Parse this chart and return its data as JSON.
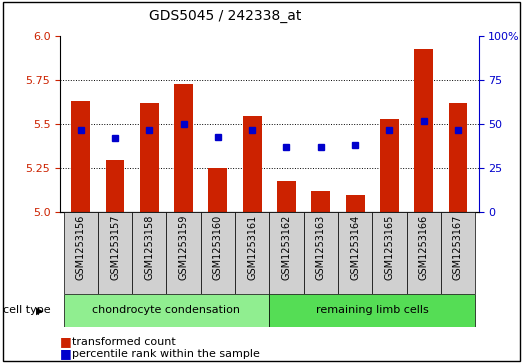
{
  "title": "GDS5045 / 242338_at",
  "samples": [
    "GSM1253156",
    "GSM1253157",
    "GSM1253158",
    "GSM1253159",
    "GSM1253160",
    "GSM1253161",
    "GSM1253162",
    "GSM1253163",
    "GSM1253164",
    "GSM1253165",
    "GSM1253166",
    "GSM1253167"
  ],
  "transformed_count": [
    5.63,
    5.3,
    5.62,
    5.73,
    5.25,
    5.55,
    5.18,
    5.12,
    5.1,
    5.53,
    5.93,
    5.62
  ],
  "percentile_rank": [
    47,
    42,
    47,
    50,
    43,
    47,
    37,
    37,
    38,
    47,
    52,
    47
  ],
  "ylim_left": [
    5.0,
    6.0
  ],
  "ylim_right": [
    0,
    100
  ],
  "yticks_left": [
    5.0,
    5.25,
    5.5,
    5.75,
    6.0
  ],
  "yticks_right": [
    0,
    25,
    50,
    75,
    100
  ],
  "bar_color": "#cc2200",
  "dot_color": "#0000cc",
  "background_plot": "#ffffff",
  "background_label": "#d0d0d0",
  "cell_type_groups": [
    {
      "label": "chondrocyte condensation",
      "start": 0,
      "end": 6,
      "color": "#90ee90"
    },
    {
      "label": "remaining limb cells",
      "start": 6,
      "end": 12,
      "color": "#55dd55"
    }
  ],
  "legend_items": [
    "transformed count",
    "percentile rank within the sample"
  ],
  "cell_type_label": "cell type",
  "bar_width": 0.55
}
